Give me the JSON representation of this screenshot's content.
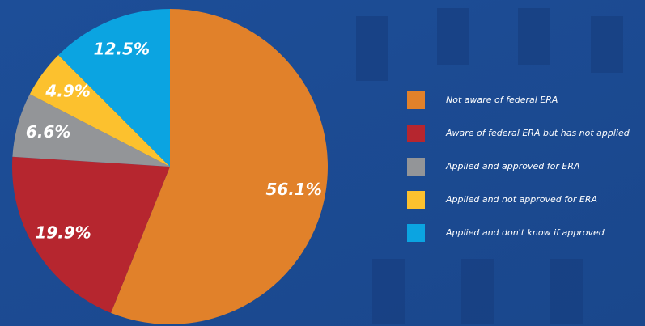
{
  "chart_data": {
    "type": "pie",
    "categories": [
      "Not aware of federal ERA",
      "Aware of federal ERA but has not applied",
      "Applied and approved for ERA",
      "Applied and not approved for ERA",
      "Applied and don't know if approved"
    ],
    "values": [
      56.1,
      19.9,
      6.6,
      4.9,
      12.5
    ],
    "value_labels": [
      "56.1%",
      "19.9%",
      "6.6%",
      "4.9%",
      "12.5%"
    ],
    "colors": [
      "#e1812a",
      "#b6262f",
      "#939598",
      "#fcc12e",
      "#0ba4e1"
    ],
    "legend": "right"
  }
}
